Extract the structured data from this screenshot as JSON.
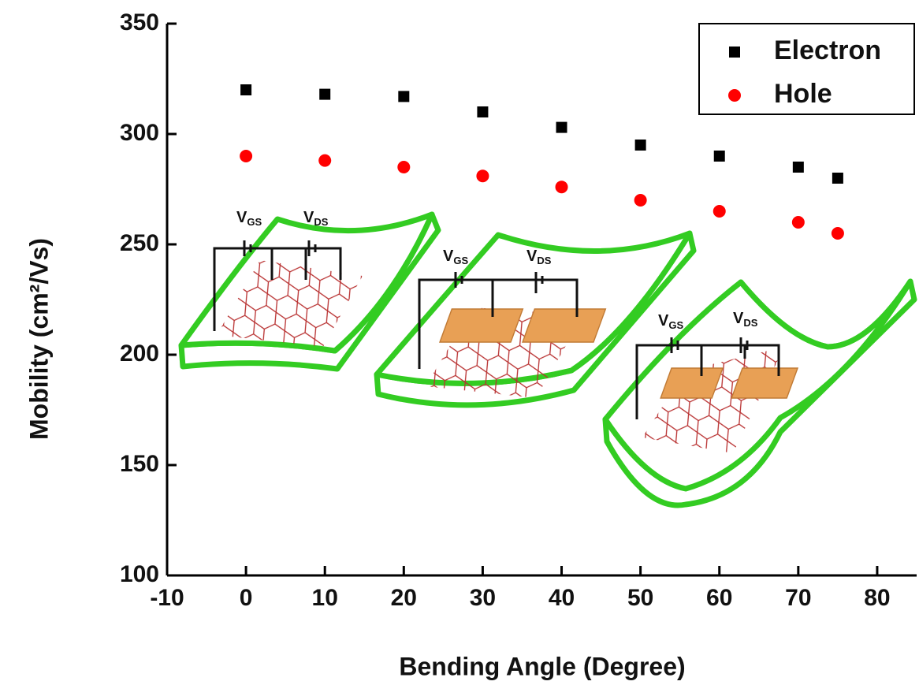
{
  "chart_data": {
    "type": "scatter",
    "xlabel": "Bending Angle (Degree)",
    "ylabel": "Mobility (cm²/Vs)",
    "x": [
      0,
      10,
      20,
      30,
      40,
      50,
      60,
      70,
      75
    ],
    "series": [
      {
        "name": "Electron",
        "color": "#000000",
        "marker": "square",
        "values": [
          320,
          318,
          317,
          310,
          303,
          295,
          290,
          285,
          280
        ]
      },
      {
        "name": "Hole",
        "color": "#ff0000",
        "marker": "circle",
        "values": [
          290,
          288,
          285,
          281,
          276,
          270,
          265,
          260,
          255
        ]
      }
    ],
    "xlim": [
      -10,
      85
    ],
    "xticks": [
      -10,
      0,
      10,
      20,
      30,
      40,
      50,
      60,
      70,
      80
    ],
    "ylim": [
      100,
      350
    ],
    "yticks": [
      100,
      150,
      200,
      250,
      300,
      350
    ],
    "legend": "upper right"
  },
  "inset_labels": [
    "V",
    "GS",
    "DS"
  ]
}
